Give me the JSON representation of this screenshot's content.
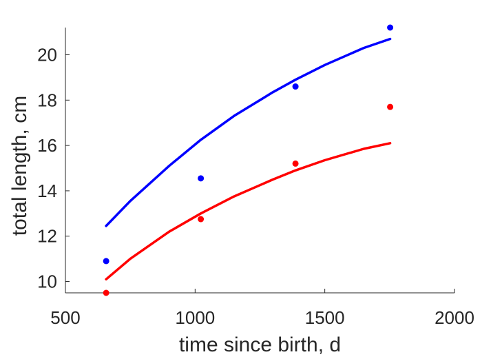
{
  "chart_data": {
    "type": "scatter",
    "title": "",
    "xlabel": "time since birth, d",
    "ylabel": "total length, cm",
    "xlim": [
      500,
      2000
    ],
    "ylim": [
      9.5,
      21.2
    ],
    "xticks": [
      500,
      1000,
      1500,
      2000
    ],
    "yticks": [
      10,
      12,
      14,
      16,
      18,
      20
    ],
    "grid": false,
    "legend": "none",
    "series": [
      {
        "color": "#0000ff",
        "points": [
          {
            "x": 657,
            "y": 10.9
          },
          {
            "x": 1022,
            "y": 14.55
          },
          {
            "x": 1387,
            "y": 18.6
          },
          {
            "x": 1752,
            "y": 21.2
          }
        ],
        "fit": [
          {
            "x": 657,
            "y": 12.45
          },
          {
            "x": 750,
            "y": 13.55
          },
          {
            "x": 900,
            "y": 15.1
          },
          {
            "x": 1022,
            "y": 16.25
          },
          {
            "x": 1150,
            "y": 17.3
          },
          {
            "x": 1300,
            "y": 18.35
          },
          {
            "x": 1387,
            "y": 18.9
          },
          {
            "x": 1500,
            "y": 19.55
          },
          {
            "x": 1650,
            "y": 20.3
          },
          {
            "x": 1752,
            "y": 20.7
          }
        ]
      },
      {
        "color": "#ff0000",
        "points": [
          {
            "x": 657,
            "y": 9.5
          },
          {
            "x": 1022,
            "y": 12.75
          },
          {
            "x": 1387,
            "y": 15.2
          },
          {
            "x": 1752,
            "y": 17.7
          }
        ],
        "fit": [
          {
            "x": 657,
            "y": 10.1
          },
          {
            "x": 750,
            "y": 11.0
          },
          {
            "x": 900,
            "y": 12.2
          },
          {
            "x": 1022,
            "y": 13.0
          },
          {
            "x": 1150,
            "y": 13.75
          },
          {
            "x": 1300,
            "y": 14.5
          },
          {
            "x": 1387,
            "y": 14.9
          },
          {
            "x": 1500,
            "y": 15.35
          },
          {
            "x": 1650,
            "y": 15.85
          },
          {
            "x": 1752,
            "y": 16.1
          }
        ]
      }
    ]
  }
}
